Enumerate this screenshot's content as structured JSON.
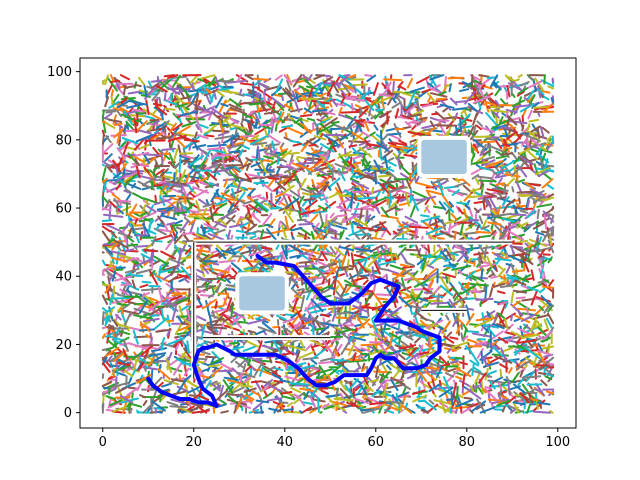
{
  "chart_data": {
    "type": "line",
    "title": "",
    "xlabel": "",
    "ylabel": "",
    "xlim": [
      -5,
      104
    ],
    "ylim": [
      -4.5,
      104
    ],
    "x_ticks": [
      0,
      20,
      40,
      60,
      80,
      100
    ],
    "y_ticks": [
      0,
      20,
      40,
      60,
      80,
      100
    ],
    "x_tick_labels": [
      "0",
      "20",
      "40",
      "60",
      "80",
      "100"
    ],
    "y_tick_labels": [
      "0",
      "20",
      "40",
      "60",
      "80",
      "100"
    ],
    "grid": false,
    "legend": "none",
    "tree": {
      "description_value": "dense random exploration edges",
      "xlim": [
        0,
        99
      ],
      "ylim": [
        0,
        99
      ],
      "edge_count": 5000,
      "palette": [
        "#1f77b4",
        "#ff7f0e",
        "#2ca02c",
        "#d62728",
        "#9467bd",
        "#8c564b",
        "#e377c2",
        "#7f7f7f",
        "#bcbd22",
        "#17becf"
      ]
    },
    "obstacles": [
      {
        "name": "obstacle-upper-right",
        "x": [
          70,
          80
        ],
        "y": [
          70,
          80
        ],
        "color": "#a8c8e0"
      },
      {
        "name": "obstacle-middle",
        "x": [
          30,
          40
        ],
        "y": [
          30,
          40
        ],
        "color": "#a8c8e0"
      }
    ],
    "walls": [
      {
        "x": [
          20,
          90
        ],
        "y": [
          50,
          50
        ],
        "color": "#000000"
      },
      {
        "x": [
          20,
          20
        ],
        "y": [
          10,
          50
        ],
        "color": "#000000"
      },
      {
        "x": [
          22,
          50
        ],
        "y": [
          22,
          22
        ],
        "color": "#000000"
      },
      {
        "x": [
          70,
          80
        ],
        "y": [
          30,
          30
        ],
        "color": "#000000"
      }
    ],
    "path": {
      "color": "#0000ff",
      "x": [
        10,
        11,
        13,
        15,
        17,
        19,
        21,
        23,
        25,
        24,
        22,
        21,
        20,
        21,
        22,
        23,
        25,
        28,
        29,
        31,
        34,
        38,
        41,
        43,
        45,
        47,
        49,
        51,
        53,
        56,
        58,
        59,
        60,
        61,
        62,
        64,
        66,
        69,
        71,
        72,
        74,
        74,
        70,
        69,
        67,
        65,
        62,
        60,
        62,
        64,
        65,
        63,
        61,
        59,
        57,
        54,
        50,
        48,
        46,
        44,
        42,
        38,
        36,
        34
      ],
      "y": [
        10,
        8,
        6,
        5,
        4,
        4,
        3,
        3,
        2,
        5,
        7,
        10,
        14,
        18,
        19,
        19,
        20,
        18,
        17,
        17,
        17,
        17,
        15,
        13,
        10,
        8,
        8,
        9,
        11,
        11,
        11,
        13,
        16,
        17,
        16,
        16,
        13,
        13,
        14,
        16,
        18,
        22,
        24,
        25,
        26,
        27,
        27,
        27,
        31,
        34,
        37,
        38,
        39,
        38,
        35,
        32,
        32,
        34,
        37,
        40,
        43,
        44,
        44,
        46
      ]
    }
  }
}
